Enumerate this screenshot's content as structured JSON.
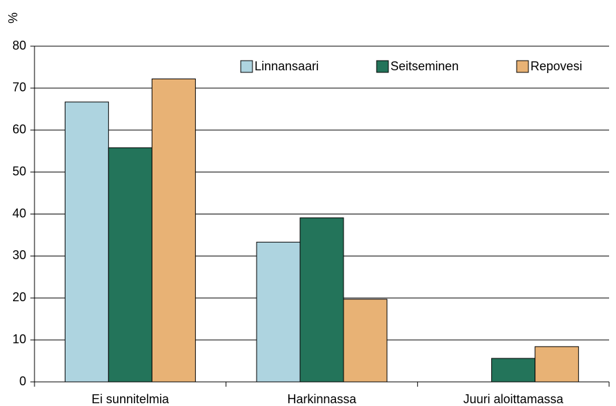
{
  "chart_data": {
    "type": "bar",
    "y_label": "%",
    "categories": [
      "Ei sunnitelmia",
      "Harkinnassa",
      "Juuri aloittamassa"
    ],
    "series": [
      {
        "name": "Linnansaari",
        "color": "#aed4e0",
        "values": [
          66.7,
          33.3,
          0
        ]
      },
      {
        "name": "Seitseminen",
        "color": "#23745a",
        "values": [
          55.8,
          39.1,
          5.6
        ]
      },
      {
        "name": "Repovesi",
        "color": "#e8b275",
        "values": [
          72.2,
          19.7,
          8.4
        ]
      }
    ],
    "ylim": [
      0,
      80
    ],
    "yticks": [
      0,
      10,
      20,
      30,
      40,
      50,
      60,
      70,
      80
    ],
    "grid": true,
    "legend": "top-right"
  }
}
